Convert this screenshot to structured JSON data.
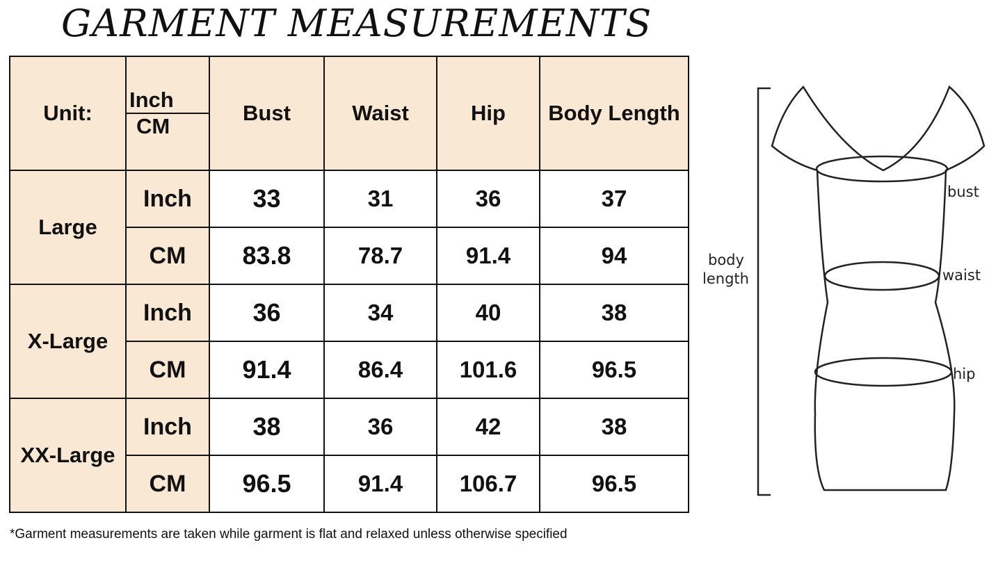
{
  "title": "GARMENT MEASUREMENTS",
  "table": {
    "unit_label": "Unit:",
    "unit_options": [
      "Inch",
      "CM"
    ],
    "columns": [
      "Bust",
      "Waist",
      "Hip",
      "Body Length"
    ],
    "sizes": [
      {
        "name": "Large",
        "rows": [
          {
            "unit": "Inch",
            "values": [
              "33",
              "31",
              "36",
              "37"
            ]
          },
          {
            "unit": "CM",
            "values": [
              "83.8",
              "78.7",
              "91.4",
              "94"
            ]
          }
        ]
      },
      {
        "name": "X-Large",
        "rows": [
          {
            "unit": "Inch",
            "values": [
              "36",
              "34",
              "40",
              "38"
            ]
          },
          {
            "unit": "CM",
            "values": [
              "91.4",
              "86.4",
              "101.6",
              "96.5"
            ]
          }
        ]
      },
      {
        "name": "XX-Large",
        "rows": [
          {
            "unit": "Inch",
            "values": [
              "38",
              "36",
              "42",
              "38"
            ]
          },
          {
            "unit": "CM",
            "values": [
              "96.5",
              "91.4",
              "106.7",
              "96.5"
            ]
          }
        ]
      }
    ]
  },
  "note": "*Garment measurements are taken while garment is flat and relaxed unless otherwise specified",
  "diagram": {
    "labels": {
      "bust": "bust",
      "waist": "waist",
      "hip": "hip",
      "body_length_1": "body",
      "body_length_2": "length"
    }
  },
  "colors": {
    "header_bg": "#f8e8d4"
  }
}
